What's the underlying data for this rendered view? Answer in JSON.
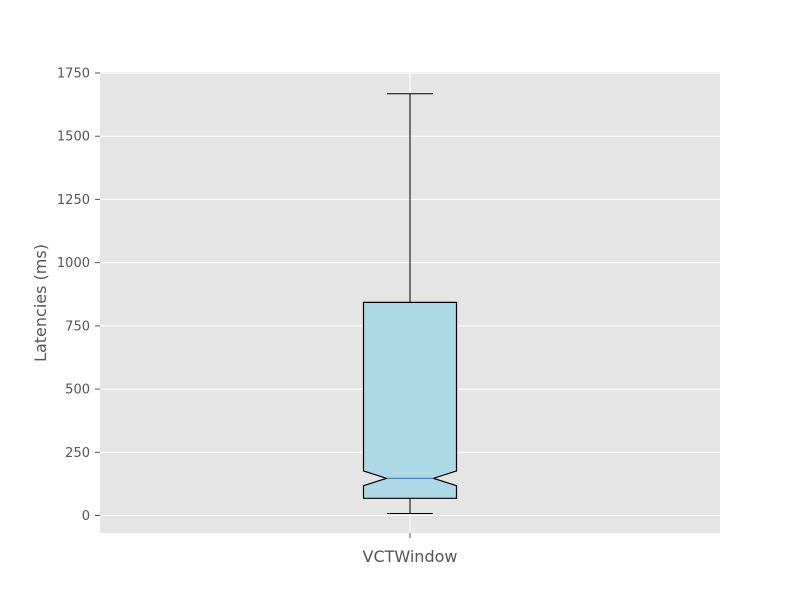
{
  "chart_data": {
    "type": "box",
    "categories": [
      "VCTWindow"
    ],
    "ylabel": "Latencies (ms)",
    "xlabel": "",
    "title": "",
    "ylim": [
      -70,
      1750
    ],
    "yticks": [
      0,
      250,
      500,
      750,
      1000,
      1250,
      1500,
      1750
    ],
    "grid": true,
    "notch": true,
    "boxes": [
      {
        "category": "VCTWindow",
        "whisker_low": 8,
        "q1": 68,
        "notch_low": 118,
        "median": 147,
        "notch_high": 176,
        "q3": 843,
        "whisker_high": 1668
      }
    ],
    "colors": {
      "plot_background": "#e5e5e5",
      "grid": "#ffffff",
      "box_fill": "#add8e6",
      "box_edge": "#000000",
      "median_line": "#3a7ab8",
      "text": "#555555"
    }
  }
}
